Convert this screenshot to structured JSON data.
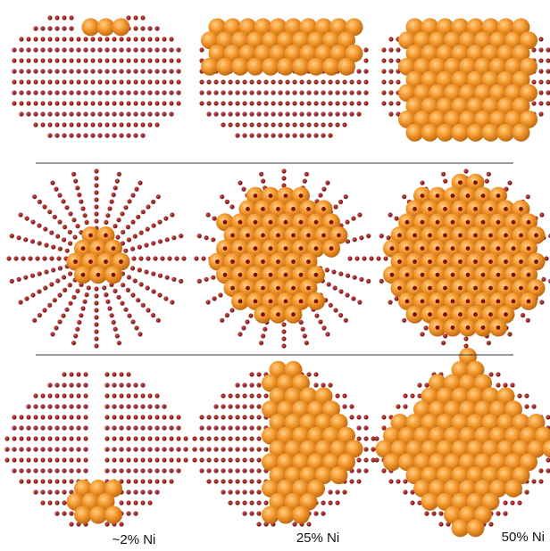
{
  "labels": [
    "~2% Ni",
    "25% Ni",
    "50% Ni"
  ]
}
